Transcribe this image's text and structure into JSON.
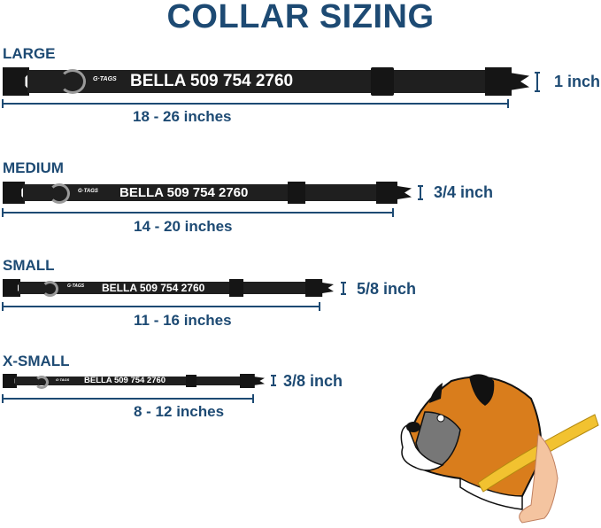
{
  "title": "COLLAR SIZING",
  "brand": "G·TAGS",
  "sizes": [
    {
      "label": "LARGE",
      "engraving": "BELLA 509 754 2760",
      "width": "1 inch",
      "range": "18 - 26 inches"
    },
    {
      "label": "MEDIUM",
      "engraving": "BELLA 509 754 2760",
      "width": "3/4 inch",
      "range": "14 - 20 inches"
    },
    {
      "label": "SMALL",
      "engraving": "BELLA 509 754 2760",
      "width": "5/8 inch",
      "range": "11 - 16 inches"
    },
    {
      "label": "X-SMALL",
      "engraving": "BELLA 509 754 2760",
      "width": "3/8 inch",
      "range": "8 - 12 inches"
    }
  ],
  "colors": {
    "heading": "#1d4a73",
    "collar": "#1f1f1f",
    "tape": "#f2c230",
    "dog_fur": "#d97d1c"
  }
}
